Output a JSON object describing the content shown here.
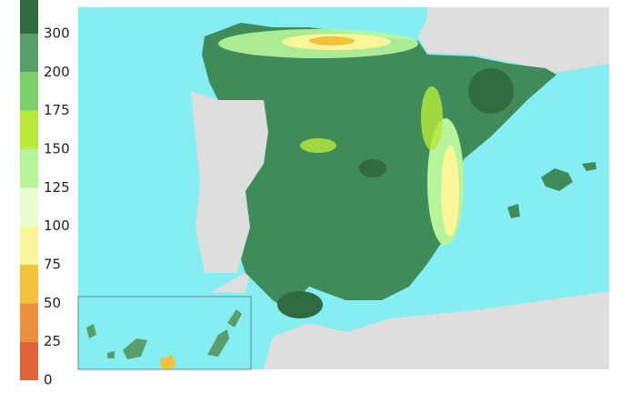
{
  "colorbar": {
    "ticks": [
      0,
      25,
      50,
      75,
      100,
      125,
      150,
      175,
      200,
      300
    ],
    "colors": [
      "#e0633a",
      "#ea8f3a",
      "#f2c23c",
      "#fbf59a",
      "#e8fbd2",
      "#b7f59a",
      "#b8ea3a",
      "#7ccf6a",
      "#5a9e6a",
      "#2f6b3f"
    ]
  }
}
